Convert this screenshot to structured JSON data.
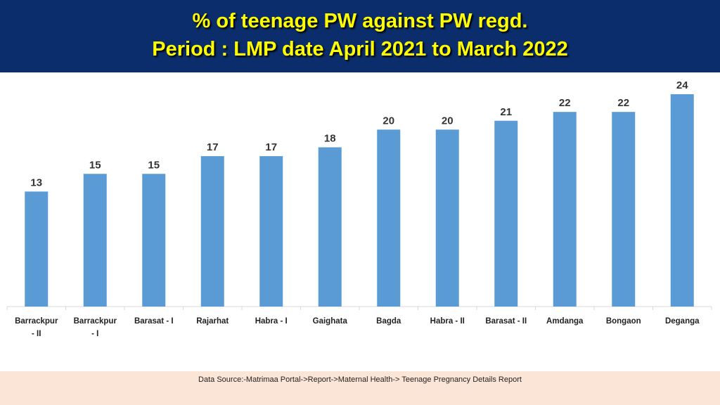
{
  "header": {
    "title_line1": "% of teenage PW against PW regd.",
    "title_line2": "Period : LMP date April 2021 to March 2022"
  },
  "footer": {
    "source": "Data Source:-Matrimaa Portal->Report->Maternal Health-> Teenage Pregnancy Details Report"
  },
  "colors": {
    "header_bg": "#0b2d6b",
    "title_text": "#ffff00",
    "bar": "#5b9bd5",
    "footer_bg": "#fbe5d6"
  },
  "chart_data": {
    "type": "bar",
    "categories": [
      [
        "Barrackpur",
        "- II"
      ],
      [
        "Barrackpur",
        "- I"
      ],
      [
        "Barasat - I"
      ],
      [
        "Rajarhat"
      ],
      [
        "Habra - I"
      ],
      [
        "Gaighata"
      ],
      [
        "Bagda"
      ],
      [
        "Habra - II"
      ],
      [
        "Barasat - II"
      ],
      [
        "Amdanga"
      ],
      [
        "Bongaon"
      ],
      [
        "Deganga"
      ]
    ],
    "values": [
      13,
      15,
      15,
      17,
      17,
      18,
      20,
      20,
      21,
      22,
      22,
      24
    ],
    "data_labels": [
      "13",
      "15",
      "15",
      "17",
      "17",
      "18",
      "20",
      "20",
      "21",
      "22",
      "22",
      "24"
    ],
    "ylim": [
      0,
      24
    ],
    "grid": false,
    "legend": "none"
  }
}
